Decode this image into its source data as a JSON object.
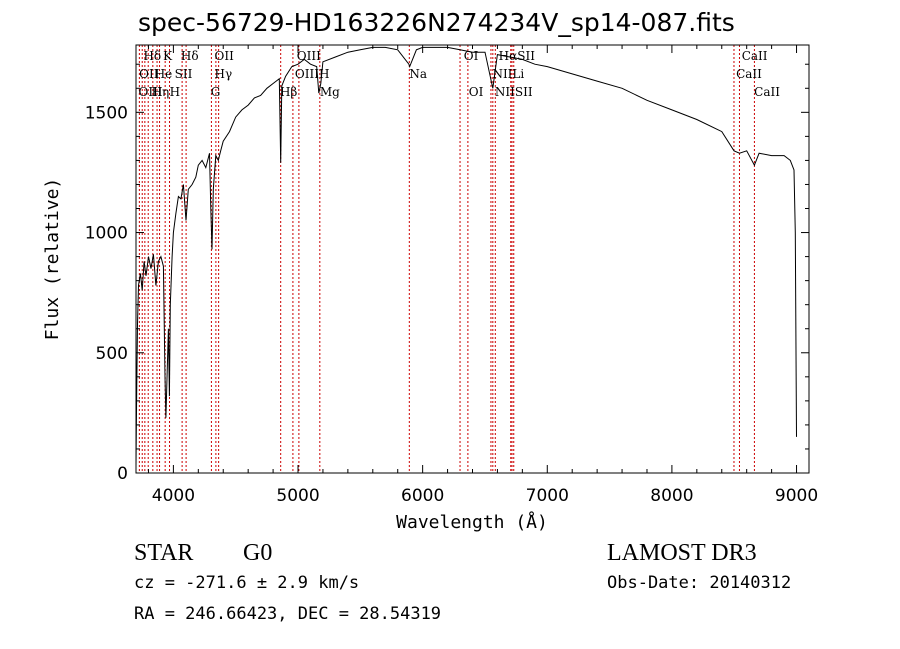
{
  "chart_data": {
    "type": "line",
    "title": "spec-56729-HD163226N274234V_sp14-087.fits",
    "xlabel": "Wavelength (Å)",
    "ylabel": "Flux (relative)",
    "xlim": [
      3700,
      9100
    ],
    "ylim": [
      0,
      1780
    ],
    "x_ticks": [
      4000,
      5000,
      6000,
      7000,
      8000,
      9000
    ],
    "y_ticks": [
      0,
      500,
      1000,
      1500
    ],
    "grid": false,
    "series": [
      {
        "name": "Flux",
        "x": [
          3700,
          3705,
          3712,
          3720,
          3735,
          3750,
          3765,
          3780,
          3800,
          3820,
          3840,
          3860,
          3880,
          3900,
          3920,
          3933,
          3940,
          3960,
          3968,
          3975,
          3990,
          4000,
          4020,
          4040,
          4060,
          4080,
          4101,
          4120,
          4150,
          4180,
          4200,
          4230,
          4260,
          4290,
          4300,
          4310,
          4320,
          4340,
          4360,
          4380,
          4400,
          4450,
          4500,
          4550,
          4600,
          4650,
          4700,
          4750,
          4800,
          4850,
          4861,
          4870,
          4900,
          4950,
          5000,
          5050,
          5100,
          5150,
          5167,
          5183,
          5200,
          5300,
          5400,
          5500,
          5600,
          5700,
          5800,
          5890,
          5896,
          5950,
          6000,
          6100,
          6200,
          6300,
          6400,
          6500,
          6563,
          6600,
          6700,
          6800,
          6900,
          7000,
          7200,
          7400,
          7600,
          7800,
          8000,
          8200,
          8400,
          8498,
          8542,
          8600,
          8662,
          8700,
          8800,
          8900,
          8950,
          8980,
          8990,
          9000
        ],
        "y": [
          30,
          300,
          620,
          780,
          830,
          760,
          880,
          820,
          900,
          850,
          910,
          780,
          880,
          900,
          860,
          400,
          230,
          600,
          320,
          700,
          900,
          1000,
          1080,
          1150,
          1140,
          1200,
          1050,
          1180,
          1200,
          1230,
          1280,
          1300,
          1270,
          1330,
          1100,
          930,
          1180,
          1320,
          1300,
          1340,
          1380,
          1420,
          1480,
          1510,
          1530,
          1560,
          1570,
          1600,
          1620,
          1640,
          1290,
          1610,
          1650,
          1690,
          1700,
          1720,
          1700,
          1690,
          1580,
          1620,
          1710,
          1730,
          1750,
          1760,
          1770,
          1770,
          1760,
          1700,
          1690,
          1760,
          1770,
          1770,
          1770,
          1760,
          1750,
          1750,
          1600,
          1740,
          1730,
          1720,
          1700,
          1690,
          1660,
          1630,
          1600,
          1550,
          1510,
          1470,
          1420,
          1340,
          1330,
          1340,
          1280,
          1330,
          1320,
          1320,
          1300,
          1260,
          1000,
          150
        ]
      }
    ],
    "line_groups": [
      {
        "name": "CaII K",
        "x": 3934,
        "labels": [
          "K"
        ]
      },
      {
        "name": "CaII H",
        "x": 3969,
        "labels": [
          "H"
        ]
      },
      {
        "name": "H-delta",
        "x": 4102,
        "labels": [
          "Hδ"
        ]
      },
      {
        "name": "H-gamma",
        "x": 4341,
        "labels": [
          "Hγ"
        ]
      },
      {
        "name": "G band",
        "x": 4305,
        "labels": [
          "G"
        ]
      },
      {
        "name": "H-beta",
        "x": 4861,
        "labels": [
          "Hβ"
        ]
      },
      {
        "name": "OIII",
        "x": 5007,
        "labels": [
          "OIII"
        ]
      },
      {
        "name": "Mg",
        "x": 5175,
        "labels": [
          "Mg"
        ]
      },
      {
        "name": "Na",
        "x": 5893,
        "labels": [
          "Na"
        ]
      },
      {
        "name": "OI",
        "x": 6300,
        "labels": [
          "OI"
        ]
      },
      {
        "name": "H-alpha",
        "x": 6563,
        "labels": [
          "Hα"
        ]
      },
      {
        "name": "SII",
        "x": 6717,
        "labels": [
          "SII"
        ]
      },
      {
        "name": "CaII",
        "x": 8542,
        "labels": [
          "CaII"
        ]
      }
    ],
    "line_labels": [
      {
        "text": "Hδ",
        "x": 3760,
        "row": 1
      },
      {
        "text": "K",
        "x": 3918,
        "row": 1
      },
      {
        "text": "Hδ",
        "x": 4060,
        "row": 1
      },
      {
        "text": "OII",
        "x": 4330,
        "row": 1
      },
      {
        "text": "OIII",
        "x": 4990,
        "row": 1
      },
      {
        "text": "OI",
        "x": 6330,
        "row": 1
      },
      {
        "text": "HαSII",
        "x": 6610,
        "row": 1
      },
      {
        "text": "CaII",
        "x": 8560,
        "row": 1
      },
      {
        "text": "OII",
        "x": 3725,
        "row": 2
      },
      {
        "text": "He",
        "x": 3850,
        "row": 2
      },
      {
        "text": "SII",
        "x": 4010,
        "row": 2
      },
      {
        "text": "Hγ",
        "x": 4330,
        "row": 2
      },
      {
        "text": "OIIIH",
        "x": 4975,
        "row": 2
      },
      {
        "text": "Na",
        "x": 5893,
        "row": 2
      },
      {
        "text": "NII",
        "x": 6560,
        "row": 2
      },
      {
        "text": "Li",
        "x": 6720,
        "row": 2
      },
      {
        "text": "CaII",
        "x": 8515,
        "row": 2
      },
      {
        "text": "OIII",
        "x": 3720,
        "row": 3
      },
      {
        "text": "Hη",
        "x": 3825,
        "row": 3
      },
      {
        "text": "H",
        "x": 3970,
        "row": 3
      },
      {
        "text": "G",
        "x": 4300,
        "row": 3
      },
      {
        "text": "Hβ",
        "x": 4855,
        "row": 3
      },
      {
        "text": "Mg",
        "x": 5175,
        "row": 3
      },
      {
        "text": "OI",
        "x": 6370,
        "row": 3
      },
      {
        "text": "NIISII",
        "x": 6580,
        "row": 3
      },
      {
        "text": "CaII",
        "x": 8660,
        "row": 3
      }
    ],
    "line_markers": [
      3727,
      3750,
      3771,
      3798,
      3835,
      3869,
      3889,
      3934,
      3969,
      4070,
      4102,
      4305,
      4341,
      4363,
      4861,
      4959,
      5007,
      5175,
      5893,
      6300,
      6363,
      6548,
      6563,
      6583,
      6707,
      6717,
      6731,
      8498,
      8542,
      8662
    ]
  },
  "info": {
    "class": "STAR",
    "subclass": "G0",
    "survey": "LAMOST DR3",
    "cz": "cz = -271.6 ± 2.9 km/s",
    "obs_date": "Obs-Date: 20140312",
    "coords": "RA = 246.66423, DEC =  28.54319"
  },
  "colors": {
    "line": "#000000",
    "marker": "#cc0000",
    "background": "#ffffff"
  }
}
